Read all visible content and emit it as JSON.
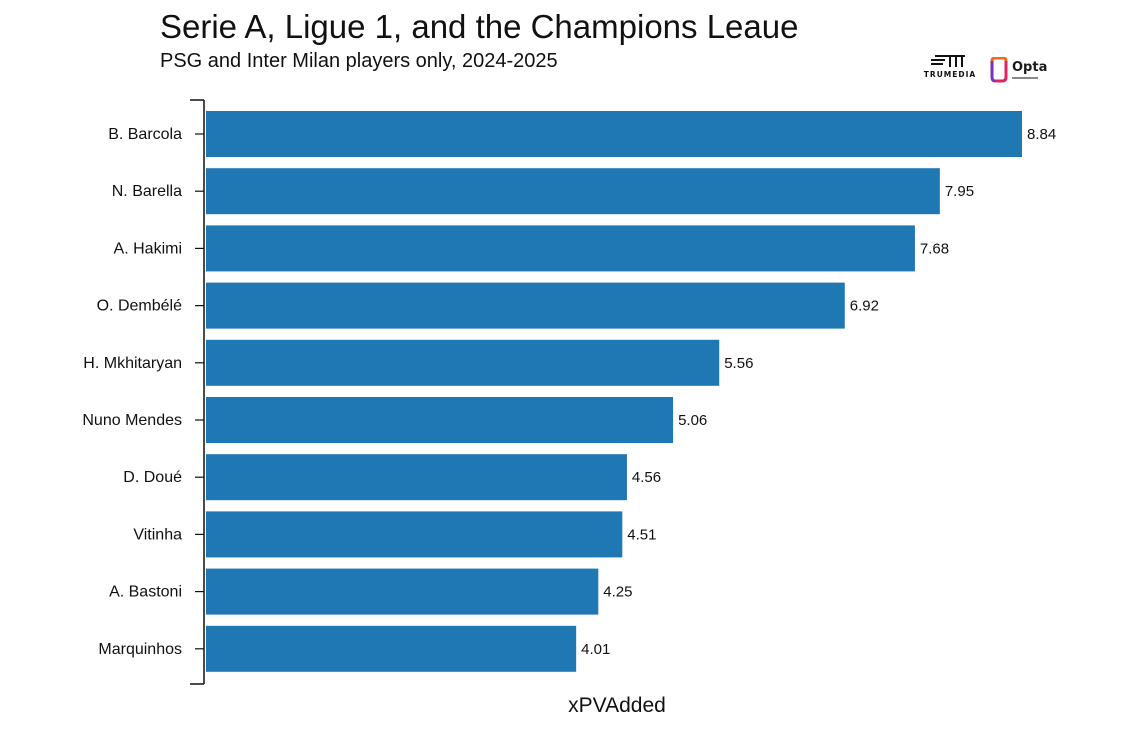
{
  "header": {
    "title": "Serie A, Ligue 1, and the Champions Leaue",
    "subtitle": "PSG and Inter Milan players only, 2024-2025"
  },
  "logos": {
    "trumedia_text": "TRUMEDIA",
    "opta_text": "Opta"
  },
  "colors": {
    "bar": "#1f77b4",
    "axis": "#111111",
    "text": "#111111"
  },
  "chart_data": {
    "type": "bar",
    "orientation": "horizontal",
    "categories": [
      "B. Barcola",
      "N. Barella",
      "A. Hakimi",
      "O. Dembélé",
      "H. Mkhitaryan",
      "Nuno Mendes",
      "D. Doué",
      "Vitinha",
      "A. Bastoni",
      "Marquinhos"
    ],
    "values": [
      8.84,
      7.95,
      7.68,
      6.92,
      5.56,
      5.06,
      4.56,
      4.51,
      4.25,
      4.01
    ],
    "data_labels": [
      "8.84",
      "7.95",
      "7.68",
      "6.92",
      "5.56",
      "5.06",
      "4.56",
      "4.51",
      "4.25",
      "4.01"
    ],
    "title": "Serie A, Ligue 1, and the Champions Leaue",
    "subtitle": "PSG and Inter Milan players only, 2024-2025",
    "xlabel": "xPVAdded",
    "ylabel": "",
    "xlim": [
      0,
      8.84
    ],
    "grid": false,
    "legend": "none"
  }
}
